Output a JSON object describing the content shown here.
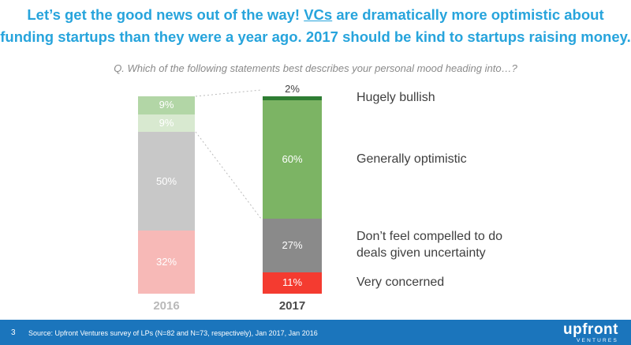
{
  "headline": {
    "line1": {
      "pre": "Let’s get the good news out of the way! ",
      "underlined": "VCs",
      "post": " are dramatically more optimistic about"
    },
    "line2": "funding startups than they were a year ago. 2017 should be kind to startups raising money."
  },
  "chart_data": {
    "type": "bar",
    "subtype": "stacked-100-percent",
    "title": "Q. Which of the following statements best describes your personal mood heading into…?",
    "unit": "%",
    "ylim": [
      0,
      100
    ],
    "legend_position": "right",
    "categories": [
      "2016",
      "2017"
    ],
    "series": [
      {
        "name": "Hugely bullish",
        "values": [
          9,
          2
        ],
        "colors": [
          "#b2d6a6",
          "#2e7d32"
        ]
      },
      {
        "name": "Generally optimistic",
        "values": [
          9,
          60
        ],
        "colors": [
          "#d8e9d0",
          "#7cb464"
        ]
      },
      {
        "name": "Don’t feel compelled to do deals given uncertainty",
        "values": [
          50,
          27
        ],
        "colors": [
          "#c8c8c8",
          "#8a8a8a"
        ]
      },
      {
        "name": "Very concerned",
        "values": [
          32,
          11
        ],
        "colors": [
          "#f7b9b7",
          "#f43b30"
        ]
      }
    ]
  },
  "footer": {
    "page_number": "3",
    "source": "Source: Upfront Ventures survey of LPs (N=82 and N=73, respectively), Jan 2017, Jan 2016",
    "logo_primary": "upfront",
    "logo_secondary": "VENTURES"
  },
  "colors": {
    "headline-blue": "#27a4dc",
    "footer-blue": "#1b75bc",
    "subtitle-gray": "#8a8a8a",
    "label-dark": "#3f3f3f",
    "axis-2016": "#b9b9b9",
    "axis-2017": "#4a4a4a",
    "connector-gray": "#bbbbbb"
  }
}
